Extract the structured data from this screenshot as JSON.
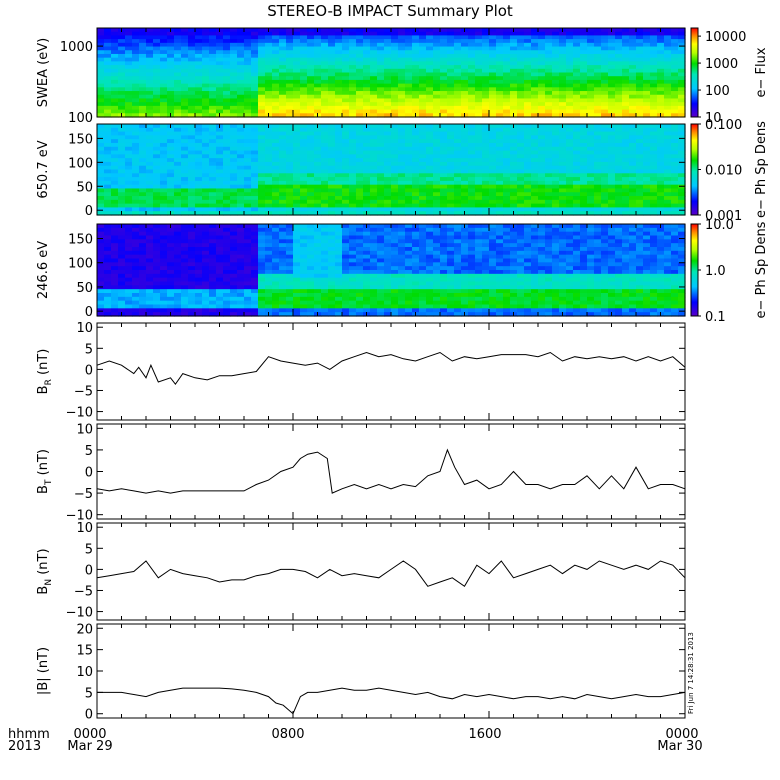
{
  "title": "STEREO-B IMPACT Summary Plot",
  "footer": {
    "left_top": "hhmm",
    "left_bottom": "2013",
    "times": [
      "0000",
      "0800",
      "1600",
      "0000"
    ],
    "dates": [
      "Mar 29",
      "Mar 30"
    ],
    "stamp": "Fri Jun  7 14:28:31 2013"
  },
  "chart_data": [
    {
      "type": "heatmap",
      "name": "swea",
      "ylabel": "SWEA (eV)",
      "yscale": "log",
      "ylim": [
        100,
        1800
      ],
      "yticks": [
        {
          "v": 1000,
          "t": "1000"
        },
        {
          "v": 100,
          "t": "100"
        }
      ],
      "colorbar": {
        "label": "e− Flux",
        "scale": "log",
        "range": [
          10,
          20000
        ],
        "ticks": [
          {
            "v": 10000,
            "t": "10000"
          },
          {
            "v": 1000,
            "t": "1000"
          },
          {
            "v": 100,
            "t": "100"
          },
          {
            "v": 10,
            "t": "10"
          }
        ]
      }
    },
    {
      "type": "heatmap",
      "name": "pa650",
      "ylabel": "650.7 eV",
      "ylim": [
        -10,
        180
      ],
      "yticks": [
        {
          "v": 150,
          "t": "150"
        },
        {
          "v": 100,
          "t": "100"
        },
        {
          "v": 50,
          "t": "50"
        },
        {
          "v": 0,
          "t": "0"
        }
      ],
      "colorbar": {
        "label": "e− Ph Sp Dens",
        "scale": "log",
        "range": [
          0.001,
          0.1
        ],
        "ticks": [
          {
            "v": 0.1,
            "t": "0.100"
          },
          {
            "v": 0.01,
            "t": "0.010"
          },
          {
            "v": 0.001,
            "t": "0.001"
          }
        ]
      }
    },
    {
      "type": "heatmap",
      "name": "pa246",
      "ylabel": "246.6 eV",
      "ylim": [
        -10,
        180
      ],
      "yticks": [
        {
          "v": 150,
          "t": "150"
        },
        {
          "v": 100,
          "t": "100"
        },
        {
          "v": 50,
          "t": "50"
        },
        {
          "v": 0,
          "t": "0"
        }
      ],
      "colorbar": {
        "label": "e− Ph Sp Dens",
        "scale": "log",
        "range": [
          0.1,
          10
        ],
        "ticks": [
          {
            "v": 10,
            "t": "10.0"
          },
          {
            "v": 1,
            "t": "1.0"
          },
          {
            "v": 0.1,
            "t": "0.1"
          }
        ]
      }
    },
    {
      "type": "line",
      "name": "br",
      "ylabel": "B",
      "ylabel_sub": "R",
      "ylabel_unit": "(nT)",
      "ylim": [
        -12,
        11
      ],
      "yticks": [
        {
          "v": 10,
          "t": "10"
        },
        {
          "v": 5,
          "t": "5"
        },
        {
          "v": 0,
          "t": "0"
        },
        {
          "v": -5,
          "t": "−5"
        },
        {
          "v": -10,
          "t": "−10"
        }
      ],
      "x_hours": [
        0,
        0.5,
        1,
        1.5,
        1.7,
        2,
        2.2,
        2.5,
        3,
        3.2,
        3.5,
        4,
        4.5,
        5,
        5.5,
        6,
        6.5,
        7,
        7.5,
        8,
        8.5,
        9,
        9.5,
        10,
        10.5,
        11,
        11.5,
        12,
        12.5,
        13,
        13.5,
        14,
        14.5,
        15,
        15.5,
        16,
        16.5,
        17,
        17.5,
        18,
        18.5,
        19,
        19.5,
        20,
        20.5,
        21,
        21.5,
        22,
        22.5,
        23,
        23.5,
        24
      ],
      "values": [
        1,
        2,
        1,
        -1,
        0.5,
        -2,
        1,
        -3,
        -2,
        -3.5,
        -1,
        -2,
        -2.5,
        -1.5,
        -1.5,
        -1,
        -0.5,
        3,
        2,
        1.5,
        1,
        1.5,
        0,
        2,
        3,
        4,
        3,
        3.5,
        2.5,
        2,
        3,
        4,
        2,
        3,
        2.5,
        3,
        3.5,
        3.5,
        3.5,
        3,
        4,
        2,
        3,
        2.5,
        3,
        2.5,
        3,
        2,
        3,
        2,
        3,
        0.5
      ]
    },
    {
      "type": "line",
      "name": "bt",
      "ylabel": "B",
      "ylabel_sub": "T",
      "ylabel_unit": "(nT)",
      "ylim": [
        -11,
        11
      ],
      "yticks": [
        {
          "v": 10,
          "t": "10"
        },
        {
          "v": 5,
          "t": "5"
        },
        {
          "v": 0,
          "t": "0"
        },
        {
          "v": -5,
          "t": "−5"
        },
        {
          "v": -10,
          "t": "−10"
        }
      ],
      "x_hours": [
        0,
        0.5,
        1,
        1.5,
        2,
        2.5,
        3,
        3.5,
        4,
        4.5,
        5,
        5.5,
        6,
        6.5,
        7,
        7.5,
        8,
        8.3,
        8.6,
        9,
        9.4,
        9.6,
        10,
        10.5,
        11,
        11.5,
        12,
        12.5,
        13,
        13.5,
        14,
        14.3,
        14.6,
        15,
        15.5,
        16,
        16.5,
        17,
        17.5,
        18,
        18.5,
        19,
        19.5,
        20,
        20.5,
        21,
        21.5,
        22,
        22.5,
        23,
        23.5,
        24
      ],
      "values": [
        -4,
        -4.5,
        -4,
        -4.5,
        -5,
        -4.5,
        -5,
        -4.5,
        -4.5,
        -4.5,
        -4.5,
        -4.5,
        -4.5,
        -3,
        -2,
        0,
        1,
        3,
        4,
        4.5,
        3,
        -5,
        -4,
        -3,
        -4,
        -3,
        -4,
        -3,
        -3.5,
        -1,
        0,
        5,
        1,
        -3,
        -2,
        -4,
        -3,
        0,
        -3,
        -3,
        -4,
        -3,
        -3,
        -1,
        -4,
        -1,
        -4,
        1,
        -4,
        -3,
        -3,
        -4
      ]
    },
    {
      "type": "line",
      "name": "bn",
      "ylabel": "B",
      "ylabel_sub": "N",
      "ylabel_unit": "(nT)",
      "ylim": [
        -12,
        11
      ],
      "yticks": [
        {
          "v": 10,
          "t": "10"
        },
        {
          "v": 5,
          "t": "5"
        },
        {
          "v": 0,
          "t": "0"
        },
        {
          "v": -5,
          "t": "−5"
        },
        {
          "v": -10,
          "t": "−10"
        }
      ],
      "x_hours": [
        0,
        0.5,
        1,
        1.5,
        2,
        2.5,
        3,
        3.5,
        4,
        4.5,
        5,
        5.5,
        6,
        6.5,
        7,
        7.5,
        8,
        8.5,
        9,
        9.5,
        10,
        10.5,
        11,
        11.5,
        12,
        12.5,
        13,
        13.5,
        14,
        14.5,
        15,
        15.5,
        16,
        16.5,
        17,
        17.5,
        18,
        18.5,
        19,
        19.5,
        20,
        20.5,
        21,
        21.5,
        22,
        22.5,
        23,
        23.5,
        24
      ],
      "values": [
        -2,
        -1.5,
        -1,
        -0.5,
        2,
        -2,
        0,
        -1,
        -1.5,
        -2,
        -3,
        -2.5,
        -2.5,
        -1.5,
        -1,
        0,
        0,
        -0.5,
        -2,
        0,
        -1.5,
        -1,
        -1.5,
        -2,
        0,
        2,
        0,
        -4,
        -3,
        -2,
        -4,
        1,
        -1,
        2,
        -2,
        -1,
        0,
        1,
        -1,
        1,
        0,
        2,
        1,
        0,
        1,
        0,
        2,
        1,
        -2
      ]
    },
    {
      "type": "line",
      "name": "bmag",
      "ylabel": "|B| (nT)",
      "ylim": [
        -1,
        21
      ],
      "yticks": [
        {
          "v": 20,
          "t": "20"
        },
        {
          "v": 15,
          "t": "15"
        },
        {
          "v": 10,
          "t": "10"
        },
        {
          "v": 5,
          "t": "5"
        },
        {
          "v": 0,
          "t": "0"
        }
      ],
      "x_hours": [
        0,
        0.5,
        1,
        1.5,
        2,
        2.5,
        3,
        3.5,
        4,
        4.5,
        5,
        5.5,
        6,
        6.5,
        7,
        7.3,
        7.6,
        8,
        8.3,
        8.6,
        9,
        9.5,
        10,
        10.5,
        11,
        11.5,
        12,
        12.5,
        13,
        13.5,
        14,
        14.5,
        15,
        15.5,
        16,
        16.5,
        17,
        17.5,
        18,
        18.5,
        19,
        19.5,
        20,
        20.5,
        21,
        21.5,
        22,
        22.5,
        23,
        23.5,
        24
      ],
      "values": [
        5,
        5,
        5,
        4.5,
        4,
        5,
        5.5,
        6,
        6,
        6,
        6,
        5.8,
        5.5,
        5,
        4,
        2.5,
        2,
        0,
        4,
        5,
        5,
        5.5,
        6,
        5.5,
        5.5,
        6,
        5.5,
        5,
        4.5,
        5,
        4,
        3.5,
        4.5,
        4,
        4.5,
        4,
        3.5,
        4,
        4,
        3.5,
        4,
        3.5,
        4.5,
        4,
        3.5,
        4,
        4.5,
        4,
        4,
        4.5,
        5
      ]
    }
  ]
}
